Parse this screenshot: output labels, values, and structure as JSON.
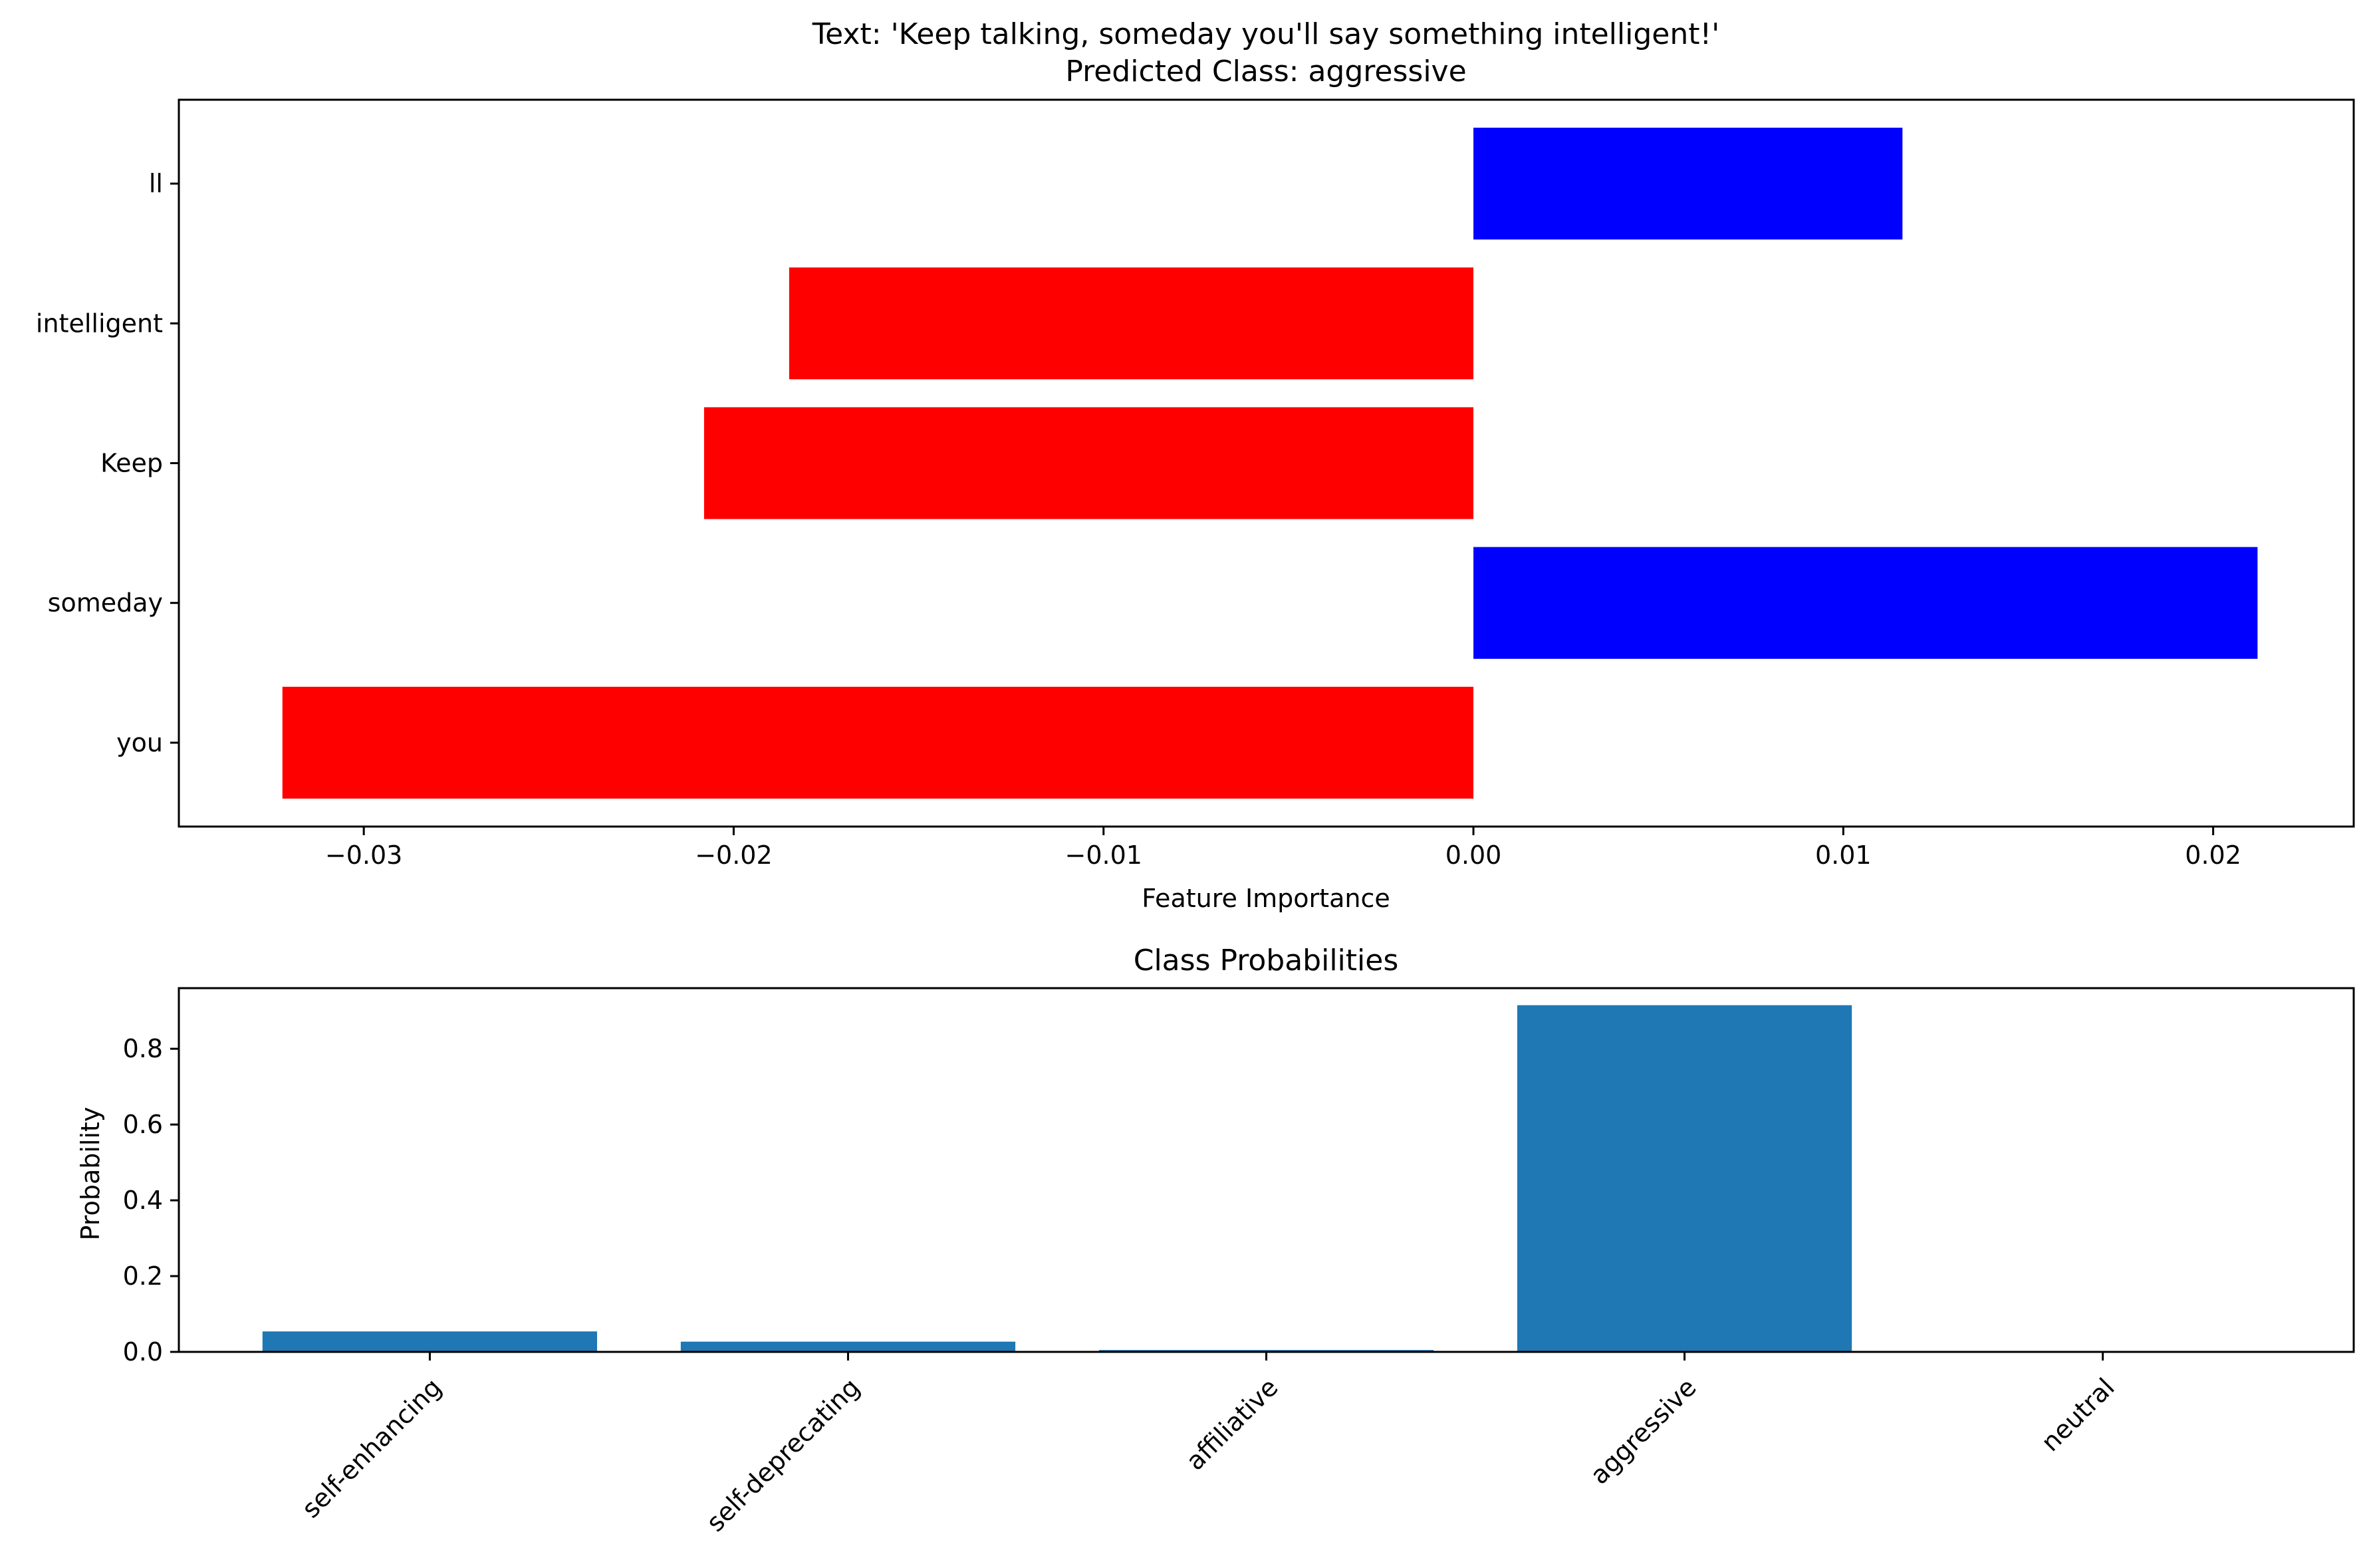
{
  "chart_data": [
    {
      "type": "bar",
      "orientation": "horizontal",
      "title": "Text: 'Keep talking, someday you'll say something intelligent!'",
      "subtitle": "Predicted Class: aggressive",
      "xlabel": "Feature Importance",
      "ylabel": "",
      "xlim": [
        -0.035,
        0.0238
      ],
      "categories": [
        "you",
        "someday",
        "Keep",
        "intelligent",
        "ll"
      ],
      "values": [
        -0.0322,
        0.0212,
        -0.0208,
        -0.0185,
        0.0116
      ],
      "colors": [
        "#ff0000",
        "#0000ff",
        "#ff0000",
        "#ff0000",
        "#0000ff"
      ],
      "positive_color": "#0000ff",
      "negative_color": "#ff0000",
      "xticks": [
        -0.03,
        -0.02,
        -0.01,
        0.0,
        0.01,
        0.02
      ],
      "xtick_labels": [
        "−0.03",
        "−0.02",
        "−0.01",
        "0.00",
        "0.01",
        "0.02"
      ],
      "grid": false,
      "legend": "none"
    },
    {
      "type": "bar",
      "orientation": "vertical",
      "title": "Class Probabilities",
      "xlabel": "",
      "ylabel": "Probability",
      "ylim": [
        0,
        0.96
      ],
      "categories": [
        "self-enhancing",
        "self-deprecating",
        "affiliative",
        "aggressive",
        "neutral"
      ],
      "values": [
        0.054,
        0.027,
        0.005,
        0.915,
        0.001
      ],
      "color": "#1f77b4",
      "yticks": [
        0.0,
        0.2,
        0.4,
        0.6,
        0.8
      ],
      "ytick_labels": [
        "0.0",
        "0.2",
        "0.4",
        "0.6",
        "0.8"
      ],
      "xtick_rotation": 45,
      "grid": false,
      "legend": "none"
    }
  ]
}
